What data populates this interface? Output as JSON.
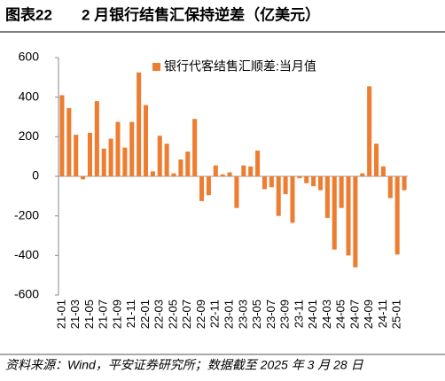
{
  "chart_data": {
    "type": "bar",
    "figure_label": "图表22",
    "title": "2 月银行结售汇保持逆差（亿美元）",
    "source": "资料来源：Wind，平安证券研究所；数据截至 2025 年 3 月 28 日",
    "categories": [
      "21-01",
      null,
      "21-03",
      null,
      "21-05",
      null,
      "21-07",
      null,
      "21-09",
      null,
      "21-11",
      null,
      "22-01",
      null,
      "22-03",
      null,
      "22-05",
      null,
      "22-07",
      null,
      "22-09",
      null,
      "22-11",
      null,
      "23-01",
      null,
      "23-03",
      null,
      "23-05",
      null,
      "23-07",
      null,
      "23-09",
      null,
      "23-11",
      null,
      "24-01",
      null,
      "24-03",
      null,
      "24-05",
      null,
      "24-07",
      null,
      "24-09",
      null,
      "24-11",
      null,
      "25-01",
      null
    ],
    "series": [
      {
        "name": "银行代客结售汇顺差:当月值",
        "color": "#ed7d31",
        "values": [
          410,
          345,
          210,
          -15,
          220,
          380,
          140,
          190,
          275,
          145,
          275,
          525,
          360,
          25,
          205,
          165,
          15,
          85,
          125,
          290,
          -125,
          -95,
          55,
          10,
          20,
          -160,
          55,
          50,
          130,
          -65,
          -55,
          -200,
          -90,
          -235,
          -10,
          -35,
          -50,
          -70,
          -210,
          -370,
          -160,
          -400,
          -460,
          15,
          455,
          165,
          50,
          -110,
          -395,
          -70
        ]
      }
    ],
    "ylim": [
      -600,
      600
    ],
    "yticks": [
      -600,
      -400,
      -200,
      0,
      200,
      400,
      600
    ]
  }
}
